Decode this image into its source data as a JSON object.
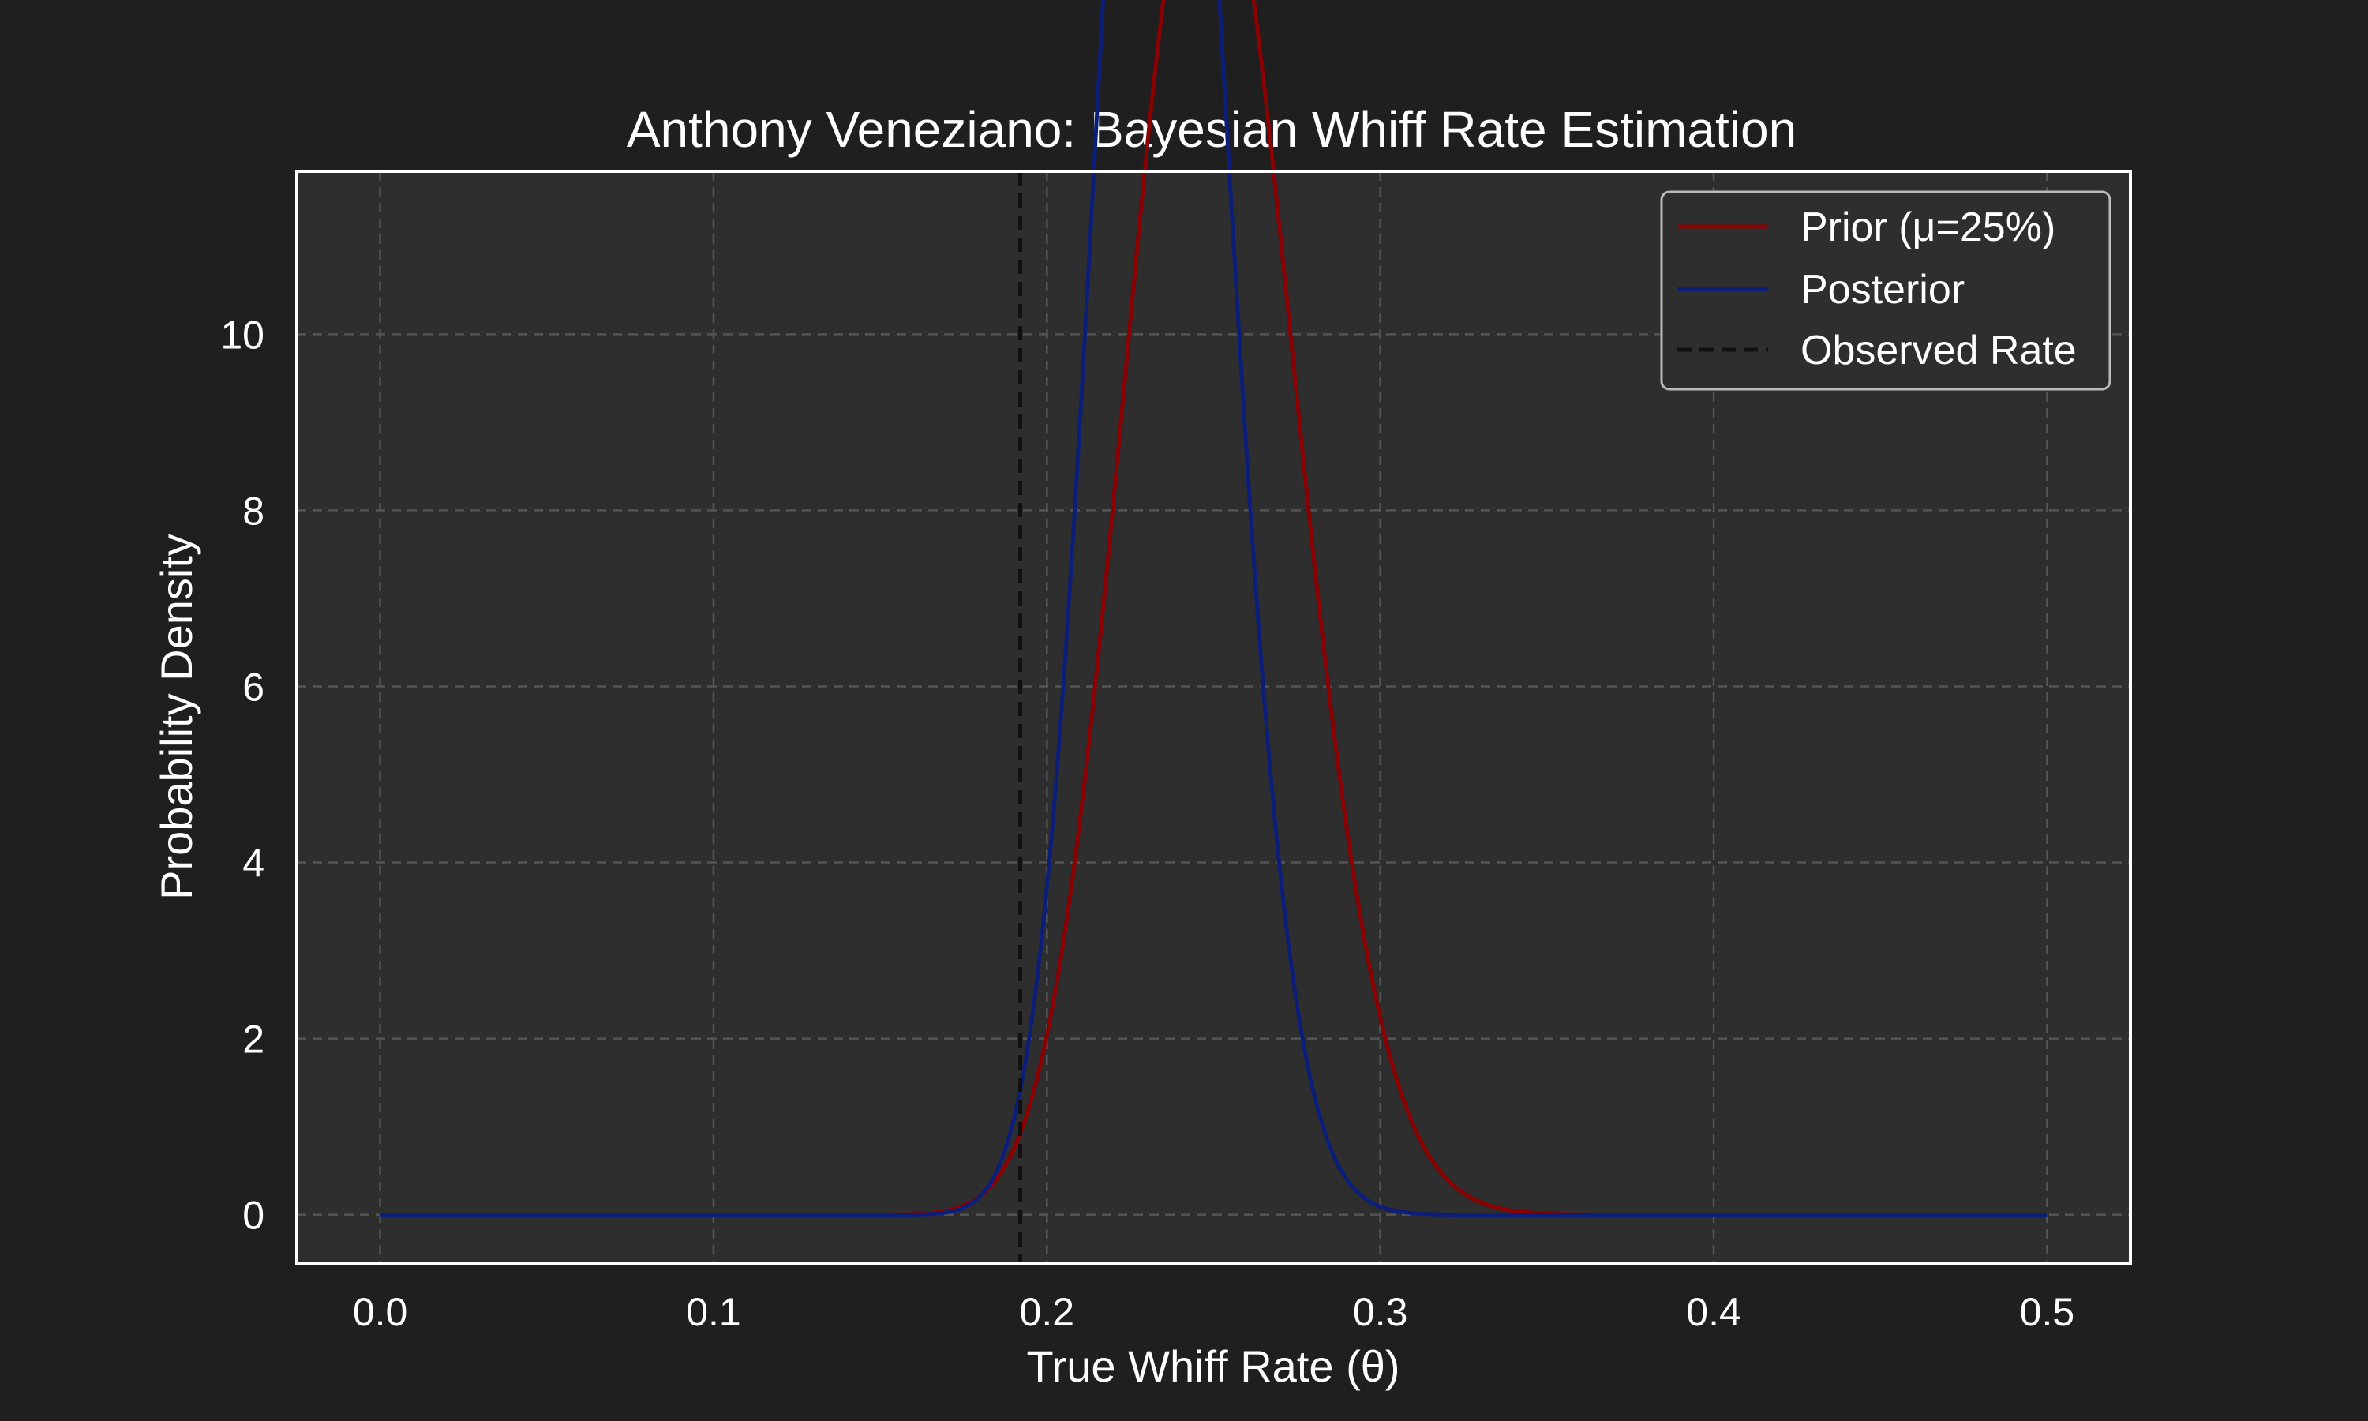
{
  "chart_data": {
    "type": "line",
    "title": "Anthony Veneziano: Bayesian Whiff Rate Estimation",
    "xlabel": "True Whiff Rate (θ)",
    "ylabel": "Probability Density",
    "xlim": [
      -0.025,
      0.525
    ],
    "ylim": [
      -0.55,
      11.85
    ],
    "x_ticks": [
      0.0,
      0.1,
      0.2,
      0.3,
      0.4,
      0.5
    ],
    "x_tick_labels": [
      "0.0",
      "0.1",
      "0.2",
      "0.3",
      "0.4",
      "0.5"
    ],
    "y_ticks": [
      0,
      2,
      4,
      6,
      8,
      10
    ],
    "y_tick_labels": [
      "0",
      "2",
      "4",
      "6",
      "8",
      "10"
    ],
    "grid": true,
    "legend_position": "top-right",
    "series": [
      {
        "name": "Prior (μ=25%)",
        "color": "#8b0000",
        "style": "solid",
        "distribution": "beta",
        "alpha": 75,
        "beta": 225,
        "x_range": [
          0.0,
          0.5
        ]
      },
      {
        "name": "Posterior",
        "color": "#0b1f7a",
        "style": "solid",
        "distribution": "beta",
        "alpha": 118,
        "beta": 384,
        "x_range": [
          0.0,
          0.5
        ]
      }
    ],
    "vlines": [
      {
        "name": "Observed Rate",
        "x": 0.192,
        "color": "#111111",
        "style": "dashed"
      }
    ]
  },
  "colors": {
    "background": "#1f1f1f",
    "plot_background": "#2e2e2e",
    "grid": "#555555",
    "axes_frame": "#ffffff",
    "text": "#ffffff",
    "legend_background": "#2e2e2e",
    "legend_border": "#bbbbbb"
  }
}
